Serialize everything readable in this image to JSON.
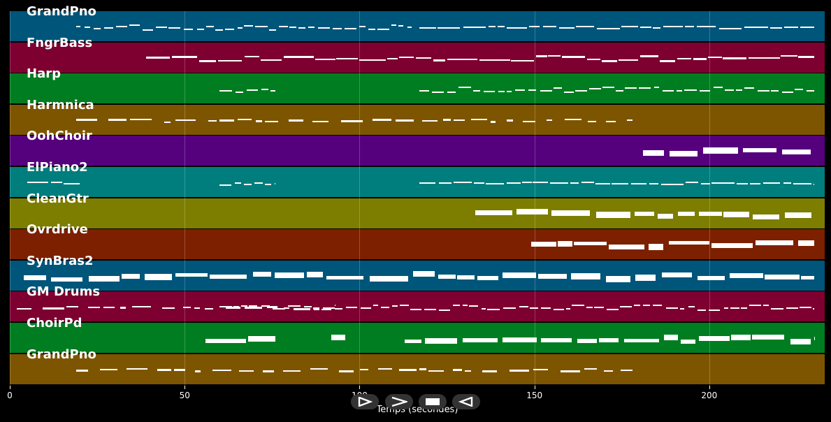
{
  "tracks": [
    {
      "name": "GrandPno",
      "color": "#00557a",
      "segments": [
        [
          19,
          115,
          "dense"
        ],
        [
          117,
          230,
          "line"
        ]
      ]
    },
    {
      "name": "FngrBass",
      "color": "#7d0030",
      "segments": [
        [
          39,
          230,
          "wavy"
        ]
      ]
    },
    {
      "name": "Harp",
      "color": "#007d20",
      "segments": [
        [
          60,
          76,
          "dense"
        ],
        [
          117,
          230,
          "dense"
        ]
      ]
    },
    {
      "name": "Harmnica",
      "color": "#7d5500",
      "segments": [
        [
          19,
          178,
          "sparse"
        ]
      ]
    },
    {
      "name": "OohChoir",
      "color": "#55007d",
      "segments": [
        [
          181,
          229,
          "block"
        ]
      ]
    },
    {
      "name": "ElPiano2",
      "color": "#007d7d",
      "segments": [
        [
          5,
          20,
          "line"
        ],
        [
          60,
          76,
          "dense"
        ],
        [
          117,
          230,
          "line"
        ]
      ]
    },
    {
      "name": "CleanGtr",
      "color": "#7d7d00",
      "segments": [
        [
          133,
          230,
          "block"
        ]
      ]
    },
    {
      "name": "Ovrdrive",
      "color": "#7d2000",
      "segments": [
        [
          149,
          230,
          "block"
        ]
      ]
    },
    {
      "name": "SynBras2",
      "color": "#00557a",
      "segments": [
        [
          4,
          230,
          "block"
        ]
      ]
    },
    {
      "name": "GM Drums",
      "color": "#7d0030",
      "segments": [
        [
          2,
          93,
          "sparse"
        ],
        [
          60,
          93,
          "dense"
        ],
        [
          93,
          230,
          "dense"
        ]
      ]
    },
    {
      "name": "ChoirPd",
      "color": "#007d20",
      "segments": [
        [
          56,
          76,
          "block"
        ],
        [
          92,
          96,
          "block"
        ],
        [
          113,
          230,
          "block"
        ]
      ]
    },
    {
      "name": "GrandPno",
      "color": "#7d5500",
      "segments": [
        [
          19,
          178,
          "sparse"
        ]
      ]
    }
  ],
  "xaxis": {
    "label": "Temps (secondes)",
    "min": 0,
    "max": 233,
    "ticks": [
      {
        "value": 0,
        "label": "0"
      },
      {
        "value": 50,
        "label": "50"
      },
      {
        "value": 100,
        "label": "100"
      },
      {
        "value": 150,
        "label": "150"
      },
      {
        "value": 200,
        "label": "200"
      }
    ]
  },
  "controls": [
    {
      "name": "play-button",
      "icon": "play-outline-icon"
    },
    {
      "name": "forward-button",
      "icon": "chevron-right-icon"
    },
    {
      "name": "stop-button",
      "icon": "stop-icon"
    },
    {
      "name": "rewind-button",
      "icon": "play-reverse-outline-icon"
    }
  ]
}
